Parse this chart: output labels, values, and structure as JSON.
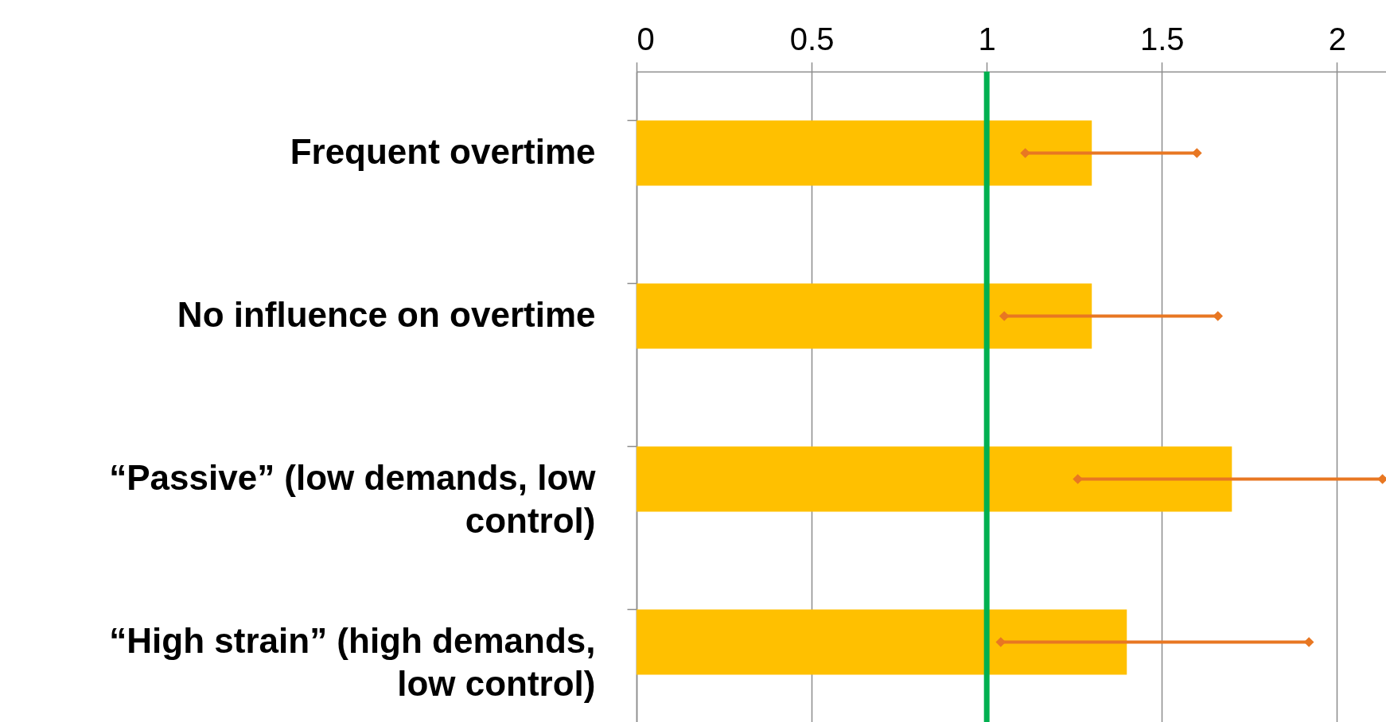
{
  "chart_data": {
    "type": "bar",
    "orientation": "horizontal",
    "categories": [
      "Frequent overtime",
      "No influence on overtime",
      "“Passive” (low demands, low control)",
      "“High strain” (high demands, low control)"
    ],
    "values": [
      1.3,
      1.3,
      1.7,
      1.4
    ],
    "errors": [
      [
        1.11,
        1.6
      ],
      [
        1.05,
        1.66
      ],
      [
        1.26,
        2.13
      ],
      [
        1.04,
        1.92
      ]
    ],
    "color": "#ffc000",
    "marker": "diamond",
    "xlim": [
      0,
      2.14
    ],
    "xticks": [
      0,
      0.5,
      1,
      1.5,
      2
    ],
    "grid": "x",
    "ref_lines": [
      {
        "axis": "x",
        "value": 1,
        "color": "#00b050"
      }
    ]
  }
}
